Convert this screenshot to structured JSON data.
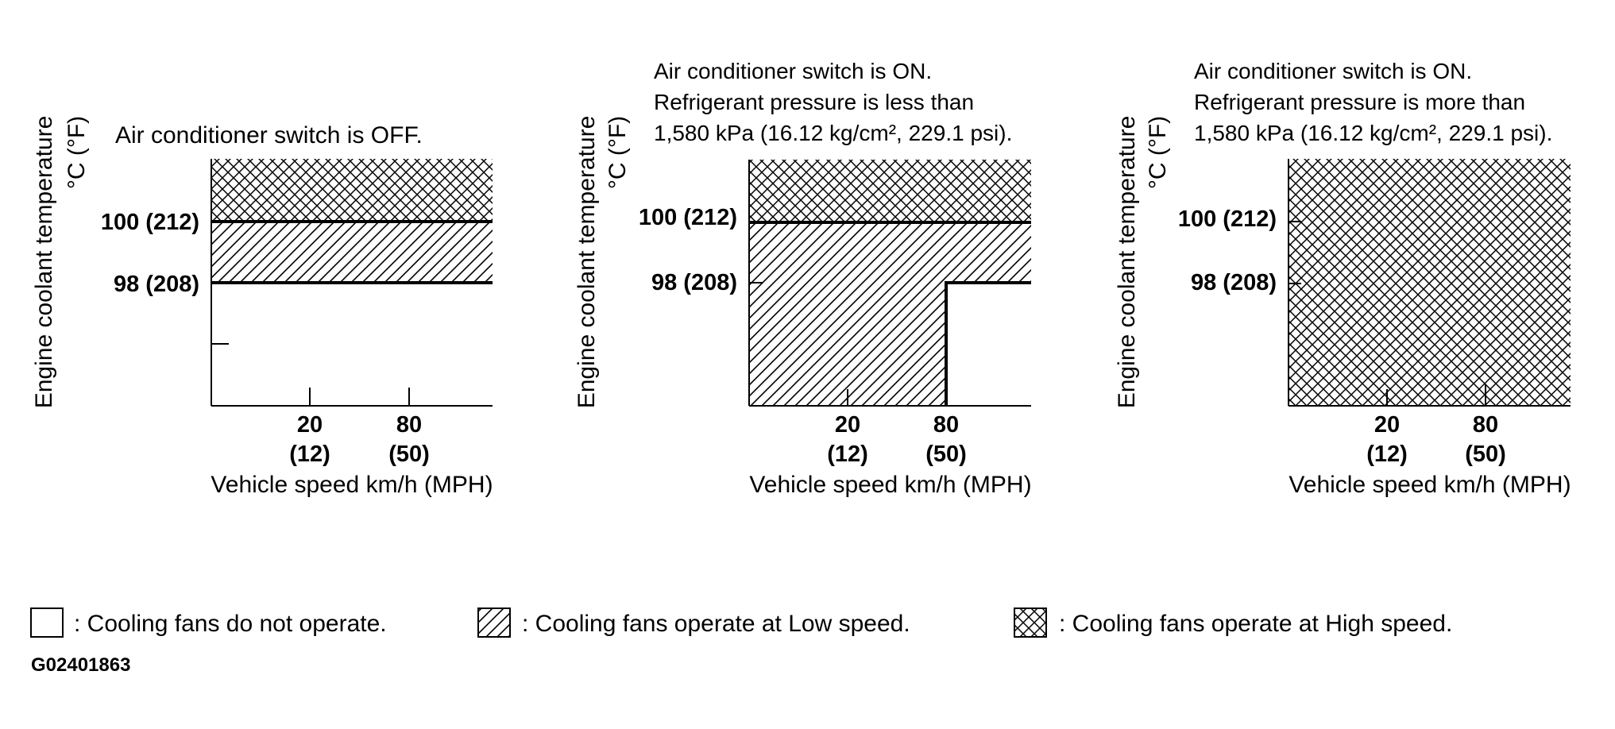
{
  "panels": [
    {
      "title_lines": [
        "Air conditioner switch is OFF."
      ],
      "ylabel": "Engine coolant temperature",
      "yunit": "°C (°F)",
      "y_ticks": [
        "100 (212)",
        "98 (208)"
      ],
      "x_ticks": [
        {
          "top": "20",
          "bottom": "(12)"
        },
        {
          "top": "80",
          "bottom": "(50)"
        }
      ],
      "xlabel": "Vehicle speed km/h (MPH)"
    },
    {
      "title_lines": [
        "Air conditioner switch is ON.",
        "Refrigerant pressure is less than",
        "1,580 kPa (16.12 kg/cm², 229.1 psi)."
      ],
      "ylabel": "Engine coolant temperature",
      "yunit": "°C (°F)",
      "y_ticks": [
        "100 (212)",
        "98 (208)"
      ],
      "x_ticks": [
        {
          "top": "20",
          "bottom": "(12)"
        },
        {
          "top": "80",
          "bottom": "(50)"
        }
      ],
      "xlabel": "Vehicle speed km/h (MPH)"
    },
    {
      "title_lines": [
        "Air conditioner switch is ON.",
        "Refrigerant pressure is more than",
        "1,580 kPa (16.12 kg/cm², 229.1 psi)."
      ],
      "ylabel": "Engine coolant temperature",
      "yunit": "°C (°F)",
      "y_ticks": [
        "100 (212)",
        "98 (208)"
      ],
      "x_ticks": [
        {
          "top": "20",
          "bottom": "(12)"
        },
        {
          "top": "80",
          "bottom": "(50)"
        }
      ],
      "xlabel": "Vehicle speed km/h (MPH)"
    }
  ],
  "legend": [
    {
      "pattern": "none",
      "label": ": Cooling fans do not operate."
    },
    {
      "pattern": "diagonal",
      "label": ": Cooling fans operate at Low speed."
    },
    {
      "pattern": "crosshatch",
      "label": ": Cooling fans operate at High speed."
    }
  ],
  "figure_code": "G02401863",
  "colors": {
    "ink": "#000000",
    "background": "#ffffff"
  }
}
